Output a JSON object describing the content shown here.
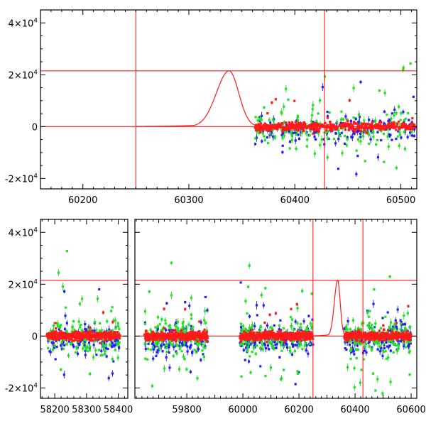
{
  "colors": {
    "red": "#ff1a1a",
    "blue": "#2222ee",
    "green": "#22e022",
    "frame": "#000000",
    "background": "#ffffff"
  },
  "chart_data": [
    {
      "type": "scatter",
      "panel": "top",
      "title": "",
      "xlabel": "",
      "ylabel": "",
      "xlim": [
        60160,
        60515
      ],
      "ylim": [
        -24000,
        45000
      ],
      "xticks": [
        60200,
        60300,
        60400,
        60500
      ],
      "xtick_labels": [
        "60200",
        "60300",
        "60400",
        "60500"
      ],
      "yticks": [
        -20000,
        0,
        20000,
        40000
      ],
      "ytick_labels": [
        {
          "base": "-2×10",
          "exp": "4"
        },
        {
          "base": "0",
          "exp": ""
        },
        {
          "base": "2×10",
          "exp": "4"
        },
        {
          "base": "4×10",
          "exp": "4"
        }
      ],
      "reference_lines": {
        "vertical": [
          60250,
          60428
        ],
        "horizontal": [
          0,
          21500
        ]
      },
      "model_curve": {
        "color": "red",
        "peak_x": 60338,
        "peak_y": 21500,
        "baseline": 0,
        "description_points": [
          [
            60250,
            50
          ],
          [
            60280,
            900
          ],
          [
            60300,
            3500
          ],
          [
            60320,
            12000
          ],
          [
            60338,
            21500
          ],
          [
            60350,
            15000
          ],
          [
            60360,
            5000
          ],
          [
            60375,
            800
          ]
        ]
      },
      "series": [
        {
          "color": "red",
          "x_range": [
            60362,
            60515
          ],
          "y_center": 0,
          "y_spread": 1200
        },
        {
          "color": "blue",
          "x_range": [
            60362,
            60515
          ],
          "y_center": -1500,
          "y_spread": 5000
        },
        {
          "color": "green",
          "x_range": [
            60362,
            60515
          ],
          "y_center": -500,
          "y_spread": 9000
        }
      ]
    },
    {
      "type": "scatter",
      "panel": "bottom",
      "title": "",
      "xlabel": "",
      "ylabel": "",
      "segments": [
        {
          "xlim": [
            58155,
            58430
          ],
          "xticks": [
            58200,
            58300,
            58400
          ],
          "xtick_labels": [
            "58200",
            "58300",
            "58400"
          ]
        },
        {
          "xlim": [
            59615,
            60620
          ],
          "xticks": [
            59800,
            60000,
            60200,
            60400,
            60600
          ],
          "xtick_labels": [
            "59800",
            "60000",
            "60200",
            "60400",
            "60600"
          ],
          "extra_ticks": [
            59700,
            59900,
            60100,
            60300,
            60500
          ]
        }
      ],
      "ylim": [
        -24000,
        45000
      ],
      "yticks": [
        -20000,
        0,
        20000,
        40000
      ],
      "ytick_labels": [
        {
          "base": "-2×10",
          "exp": "4"
        },
        {
          "base": "0",
          "exp": ""
        },
        {
          "base": "2×10",
          "exp": "4"
        },
        {
          "base": "4×10",
          "exp": "4"
        }
      ],
      "reference_lines": {
        "vertical": [
          60250,
          60428
        ],
        "horizontal": [
          0,
          21500
        ]
      },
      "model_curve": {
        "color": "red",
        "peak_x": 60338,
        "peak_y": 21500,
        "baseline": 0
      },
      "data_clusters": [
        {
          "x_range": [
            58175,
            58405
          ]
        },
        {
          "x_range": [
            59650,
            59875
          ]
        },
        {
          "x_range": [
            59990,
            60250
          ]
        },
        {
          "x_range": [
            60362,
            60600
          ]
        }
      ]
    }
  ]
}
